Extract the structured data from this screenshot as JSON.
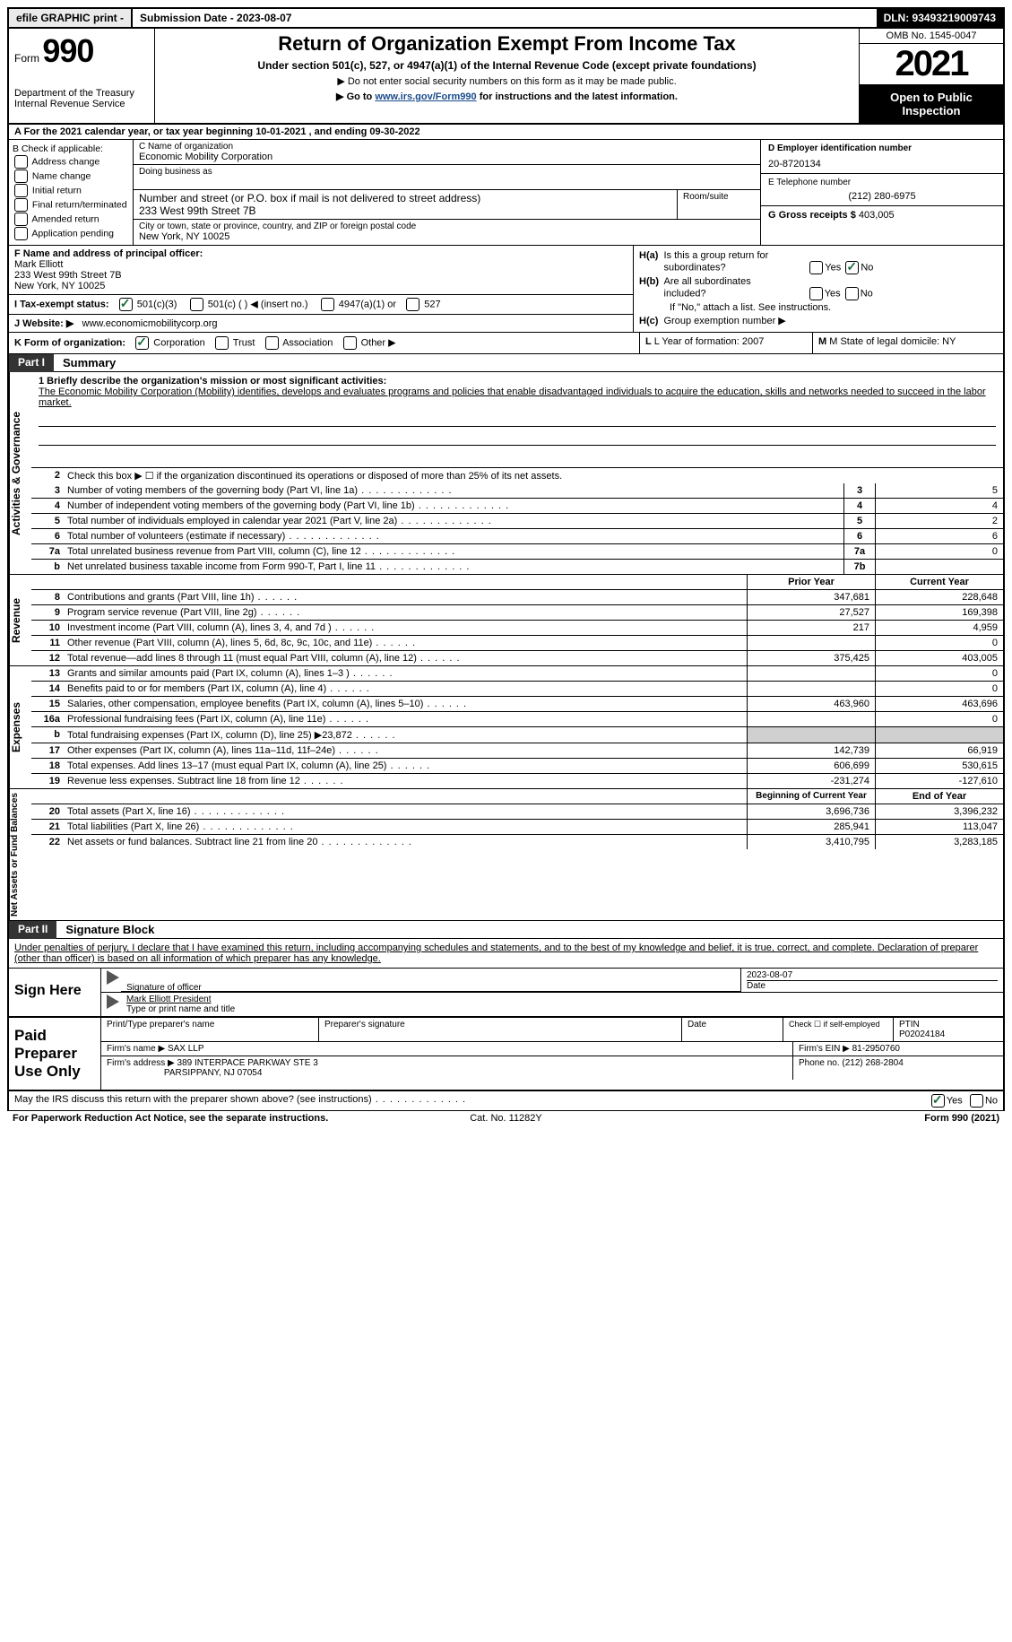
{
  "topbar": {
    "efile": "efile GRAPHIC print -",
    "submission": "Submission Date - 2023-08-07",
    "dln": "DLN: 93493219009743"
  },
  "header": {
    "form_label": "Form",
    "form_number": "990",
    "dept": "Department of the Treasury Internal Revenue Service",
    "title": "Return of Organization Exempt From Income Tax",
    "sub1": "Under section 501(c), 527, or 4947(a)(1) of the Internal Revenue Code (except private foundations)",
    "sub2a": "▶ Do not enter social security numbers on this form as it may be made public.",
    "sub2b_prefix": "▶ Go to ",
    "sub2b_link": "www.irs.gov/Form990",
    "sub2b_suffix": " for instructions and the latest information.",
    "omb": "OMB No. 1545-0047",
    "year": "2021",
    "inspect": "Open to Public Inspection"
  },
  "row_a": "A For the 2021 calendar year, or tax year beginning 10-01-2021    , and ending 09-30-2022",
  "col_b": {
    "header": "B Check if applicable:",
    "items": [
      "Address change",
      "Name change",
      "Initial return",
      "Final return/terminated",
      "Amended return",
      "Application pending"
    ]
  },
  "col_c": {
    "name_lbl": "C Name of organization",
    "name": "Economic Mobility Corporation",
    "dba_lbl": "Doing business as",
    "addr_lbl": "Number and street (or P.O. box if mail is not delivered to street address)",
    "addr": "233 West 99th Street 7B",
    "room_lbl": "Room/suite",
    "city_lbl": "City or town, state or province, country, and ZIP or foreign postal code",
    "city": "New York, NY  10025"
  },
  "col_d": {
    "ein_lbl": "D Employer identification number",
    "ein": "20-8720134",
    "tel_lbl": "E Telephone number",
    "tel": "(212) 280-6975",
    "gross_lbl": "G Gross receipts $",
    "gross": "403,005"
  },
  "col_f": {
    "lbl": "F Name and address of principal officer:",
    "name": "Mark Elliott",
    "addr1": "233 West 99th Street 7B",
    "addr2": "New York, NY  10025",
    "tax_lbl": "I   Tax-exempt status:",
    "tax_501c3": "501(c)(3)",
    "tax_501c": "501(c) (  ) ◀ (insert no.)",
    "tax_4947": "4947(a)(1) or",
    "tax_527": "527",
    "website_lbl": "J   Website: ▶",
    "website": "www.economicmobilitycorp.org"
  },
  "col_h": {
    "ha": "H(a)  Is this a group return for subordinates?",
    "hb": "H(b)  Are all subordinates included?",
    "hb_note": "If \"No,\" attach a list. See instructions.",
    "hc": "H(c)  Group exemption number ▶",
    "yes": "Yes",
    "no": "No"
  },
  "row_k": {
    "k": "K Form of organization:",
    "corp": "Corporation",
    "trust": "Trust",
    "assoc": "Association",
    "other": "Other ▶",
    "l": "L Year of formation: 2007",
    "m": "M State of legal domicile: NY"
  },
  "part1": {
    "num": "Part I",
    "title": "Summary"
  },
  "mission": {
    "lbl": "1   Briefly describe the organization's mission or most significant activities:",
    "text": "The Economic Mobility Corporation (Mobility) identifies, develops and evaluates programs and policies that enable disadvantaged individuals to acquire the education, skills and networks needed to succeed in the labor market."
  },
  "activities_label": "Activities & Governance",
  "revenue_label": "Revenue",
  "expenses_label": "Expenses",
  "netassets_label": "Net Assets or Fund Balances",
  "rows_gov": [
    {
      "n": "2",
      "txt": "Check this box ▶ ☐ if the organization discontinued its operations or disposed of more than 25% of its net assets.",
      "box": "",
      "val": ""
    },
    {
      "n": "3",
      "txt": "Number of voting members of the governing body (Part VI, line 1a)",
      "box": "3",
      "val": "5"
    },
    {
      "n": "4",
      "txt": "Number of independent voting members of the governing body (Part VI, line 1b)",
      "box": "4",
      "val": "4"
    },
    {
      "n": "5",
      "txt": "Total number of individuals employed in calendar year 2021 (Part V, line 2a)",
      "box": "5",
      "val": "2"
    },
    {
      "n": "6",
      "txt": "Total number of volunteers (estimate if necessary)",
      "box": "6",
      "val": "6"
    },
    {
      "n": "7a",
      "txt": "Total unrelated business revenue from Part VIII, column (C), line 12",
      "box": "7a",
      "val": "0"
    },
    {
      "n": "b",
      "txt": "Net unrelated business taxable income from Form 990-T, Part I, line 11",
      "box": "7b",
      "val": ""
    }
  ],
  "prior_year": "Prior Year",
  "current_year": "Current Year",
  "rows_rev": [
    {
      "n": "8",
      "txt": "Contributions and grants (Part VIII, line 1h)",
      "py": "347,681",
      "cy": "228,648"
    },
    {
      "n": "9",
      "txt": "Program service revenue (Part VIII, line 2g)",
      "py": "27,527",
      "cy": "169,398"
    },
    {
      "n": "10",
      "txt": "Investment income (Part VIII, column (A), lines 3, 4, and 7d )",
      "py": "217",
      "cy": "4,959"
    },
    {
      "n": "11",
      "txt": "Other revenue (Part VIII, column (A), lines 5, 6d, 8c, 9c, 10c, and 11e)",
      "py": "",
      "cy": "0"
    },
    {
      "n": "12",
      "txt": "Total revenue—add lines 8 through 11 (must equal Part VIII, column (A), line 12)",
      "py": "375,425",
      "cy": "403,005"
    }
  ],
  "rows_exp": [
    {
      "n": "13",
      "txt": "Grants and similar amounts paid (Part IX, column (A), lines 1–3 )",
      "py": "",
      "cy": "0"
    },
    {
      "n": "14",
      "txt": "Benefits paid to or for members (Part IX, column (A), line 4)",
      "py": "",
      "cy": "0"
    },
    {
      "n": "15",
      "txt": "Salaries, other compensation, employee benefits (Part IX, column (A), lines 5–10)",
      "py": "463,960",
      "cy": "463,696"
    },
    {
      "n": "16a",
      "txt": "Professional fundraising fees (Part IX, column (A), line 11e)",
      "py": "",
      "cy": "0"
    },
    {
      "n": "b",
      "txt": "Total fundraising expenses (Part IX, column (D), line 25) ▶23,872",
      "py": "shade",
      "cy": "shade"
    },
    {
      "n": "17",
      "txt": "Other expenses (Part IX, column (A), lines 11a–11d, 11f–24e)",
      "py": "142,739",
      "cy": "66,919"
    },
    {
      "n": "18",
      "txt": "Total expenses. Add lines 13–17 (must equal Part IX, column (A), line 25)",
      "py": "606,699",
      "cy": "530,615"
    },
    {
      "n": "19",
      "txt": "Revenue less expenses. Subtract line 18 from line 12",
      "py": "-231,274",
      "cy": "-127,610"
    }
  ],
  "boy": "Beginning of Current Year",
  "eoy": "End of Year",
  "rows_net": [
    {
      "n": "20",
      "txt": "Total assets (Part X, line 16)",
      "py": "3,696,736",
      "cy": "3,396,232"
    },
    {
      "n": "21",
      "txt": "Total liabilities (Part X, line 26)",
      "py": "285,941",
      "cy": "113,047"
    },
    {
      "n": "22",
      "txt": "Net assets or fund balances. Subtract line 21 from line 20",
      "py": "3,410,795",
      "cy": "3,283,185"
    }
  ],
  "part2": {
    "num": "Part II",
    "title": "Signature Block"
  },
  "sig_decl": "Under penalties of perjury, I declare that I have examined this return, including accompanying schedules and statements, and to the best of my knowledge and belief, it is true, correct, and complete. Declaration of preparer (other than officer) is based on all information of which preparer has any knowledge.",
  "sign_here": "Sign Here",
  "sig_officer_lbl": "Signature of officer",
  "sig_date": "2023-08-07",
  "sig_date_lbl": "Date",
  "sig_name": "Mark Elliott President",
  "sig_name_lbl": "Type or print name and title",
  "paid_prep": "Paid Preparer Use Only",
  "prep_name_lbl": "Print/Type preparer's name",
  "prep_sig_lbl": "Preparer's signature",
  "prep_date_lbl": "Date",
  "prep_check_lbl": "Check ☐ if self-employed",
  "ptin_lbl": "PTIN",
  "ptin": "P02024184",
  "firm_name_lbl": "Firm's name    ▶",
  "firm_name": "SAX LLP",
  "firm_ein_lbl": "Firm's EIN ▶",
  "firm_ein": "81-2950760",
  "firm_addr_lbl": "Firm's address ▶",
  "firm_addr1": "389 INTERPACE PARKWAY STE 3",
  "firm_addr2": "PARSIPPANY, NJ  07054",
  "firm_phone_lbl": "Phone no.",
  "firm_phone": "(212) 268-2804",
  "discuss": "May the IRS discuss this return with the preparer shown above? (see instructions)",
  "footer_l": "For Paperwork Reduction Act Notice, see the separate instructions.",
  "footer_c": "Cat. No. 11282Y",
  "footer_r": "Form 990 (2021)"
}
